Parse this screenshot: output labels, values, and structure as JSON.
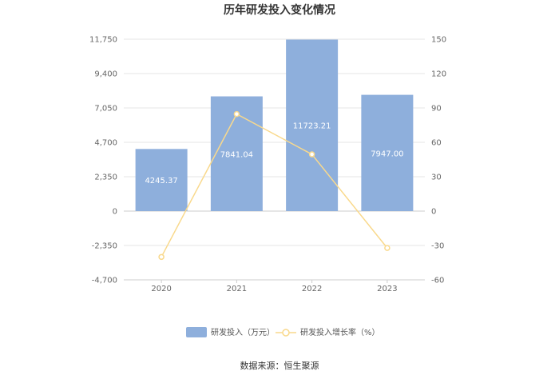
{
  "chart_data": {
    "type": "bar",
    "title": "历年研发投入变化情况",
    "categories": [
      "2020",
      "2021",
      "2022",
      "2023"
    ],
    "series": [
      {
        "name": "研发投入（万元）",
        "type": "bar",
        "axis": "left",
        "values": [
          4245.37,
          7841.04,
          11723.21,
          7947.0
        ],
        "labels": [
          "4245.37",
          "7841.04",
          "11723.21",
          "7947.00"
        ],
        "color": "#8eafdc"
      },
      {
        "name": "研发投入增长率（%）",
        "type": "line",
        "axis": "right",
        "values": [
          -40,
          84.7,
          49.5,
          -32.2
        ],
        "color": "#f9d98c"
      }
    ],
    "y_left": {
      "ylim": [
        -4700,
        11750
      ],
      "ticks": [
        "-4,700",
        "-2,350",
        "0",
        "2,350",
        "4,700",
        "7,050",
        "9,400",
        "11,750"
      ],
      "tick_values": [
        -4700,
        -2350,
        0,
        2350,
        4700,
        7050,
        9400,
        11750
      ]
    },
    "y_right": {
      "ylim": [
        -60,
        150
      ],
      "ticks": [
        "-60",
        "-30",
        "0",
        "30",
        "60",
        "90",
        "120",
        "150"
      ],
      "tick_values": [
        -60,
        -30,
        0,
        30,
        60,
        90,
        120,
        150
      ]
    },
    "grid": true,
    "legend_position": "bottom"
  },
  "source_text": "数据来源：恒生聚源"
}
